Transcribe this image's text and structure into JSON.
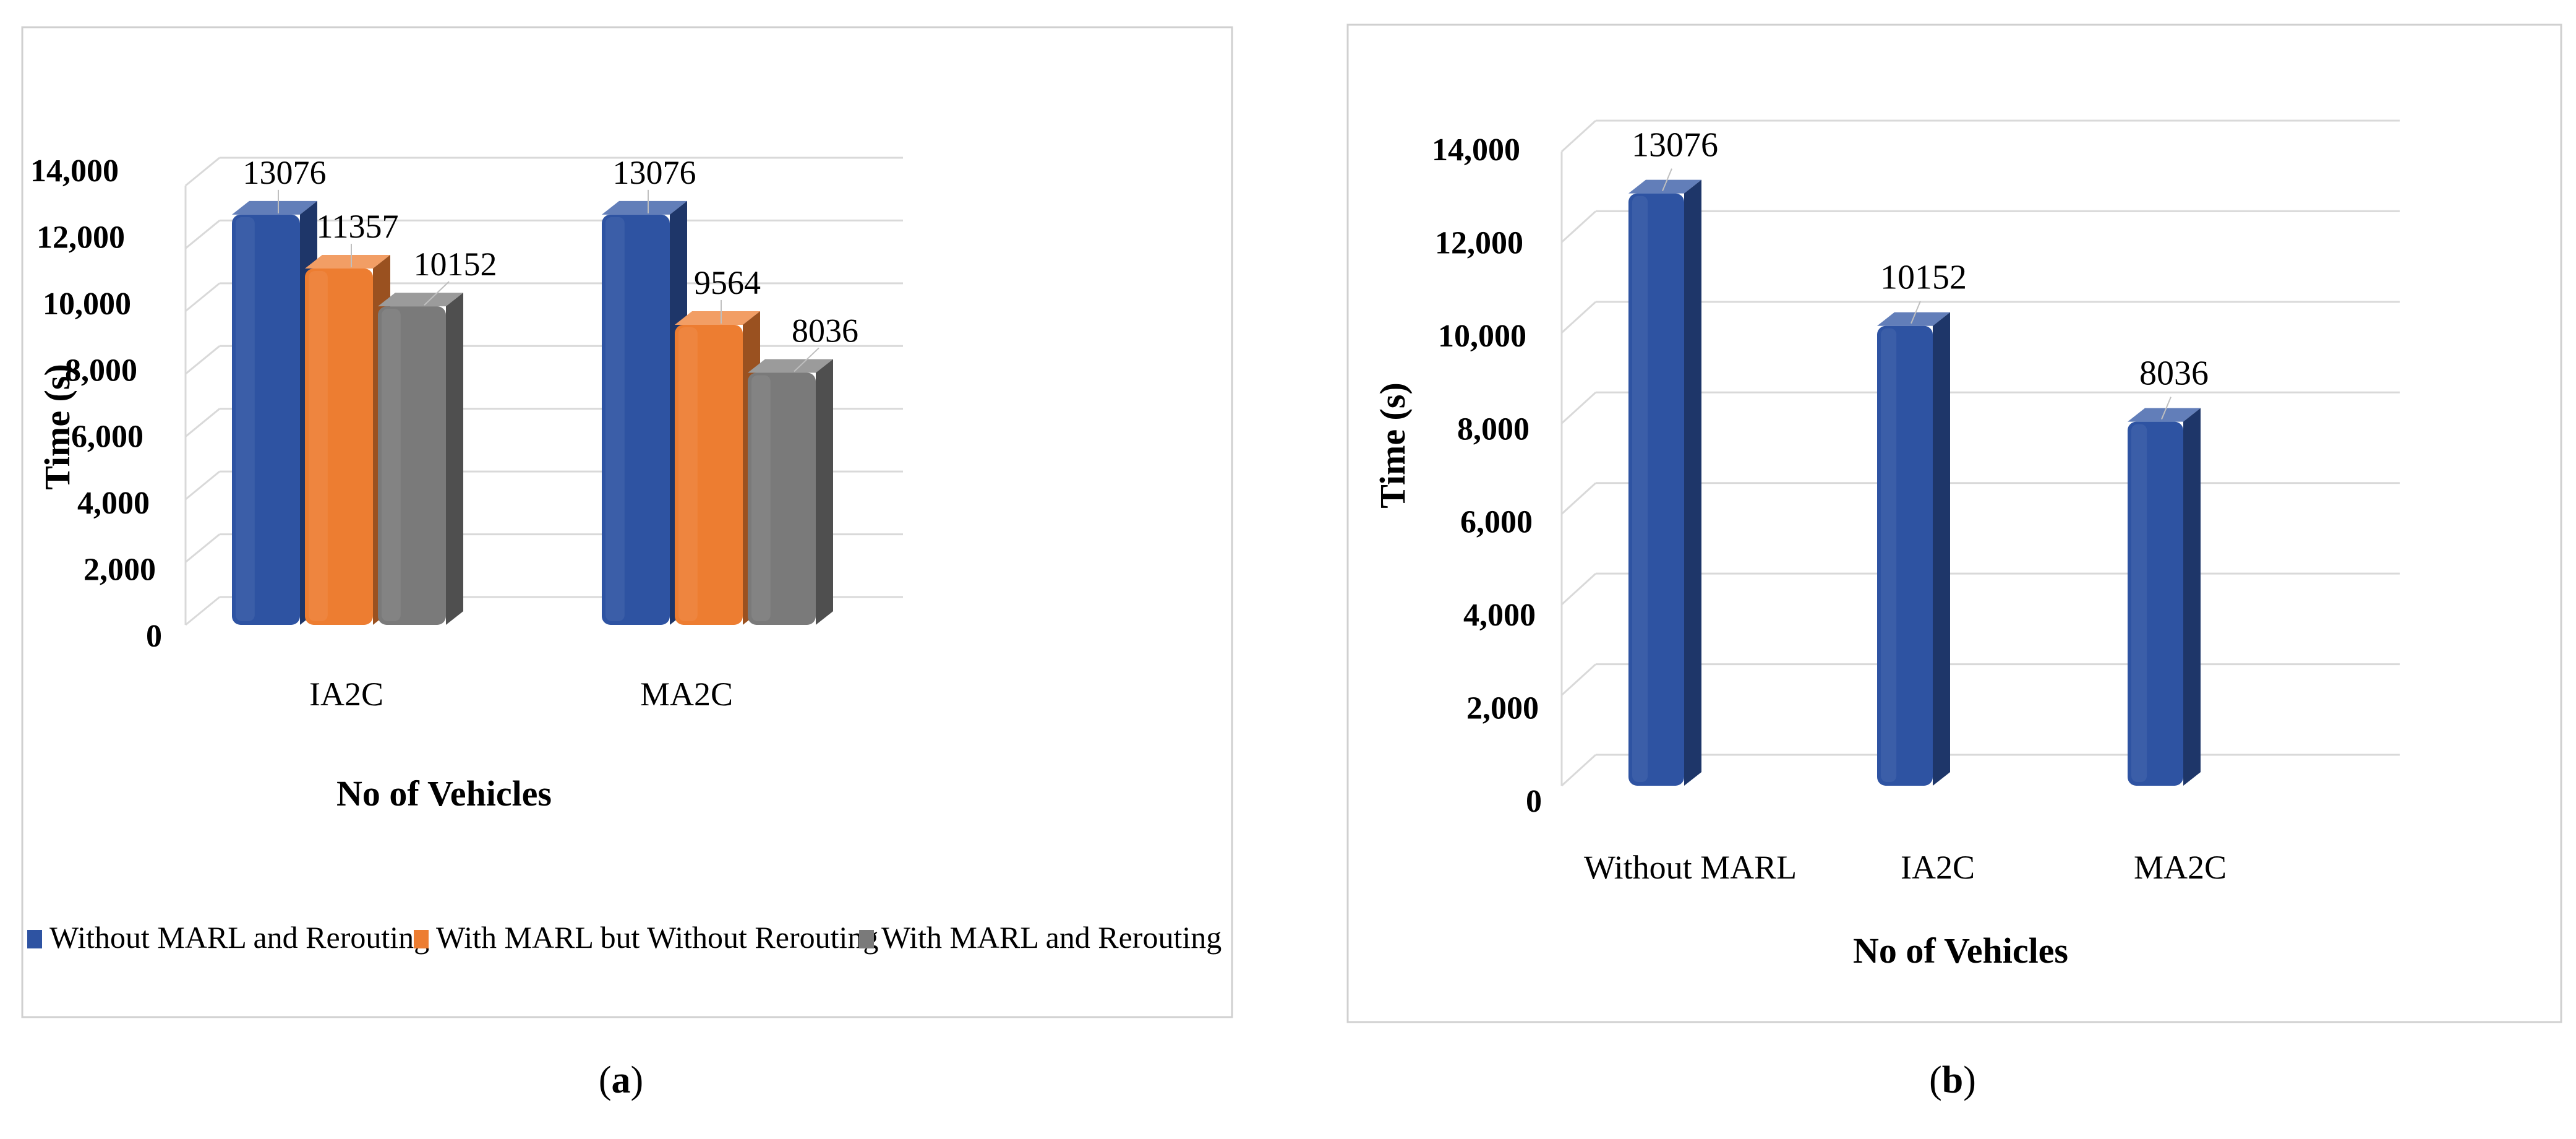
{
  "captions": {
    "a_paren_open": "(",
    "a_letter": "a",
    "a_paren_close": ")",
    "b_paren_open": "(",
    "b_letter": "b",
    "b_paren_close": ")"
  },
  "colors": {
    "blue": "#2E53A2",
    "orange": "#ED7D31",
    "gray": "#7A7A7A",
    "grid": "#D9D9D9",
    "frame": "#D0D0D0"
  },
  "chart_data": [
    {
      "id": "a",
      "type": "bar",
      "title": "",
      "xlabel": "No of Vehicles",
      "ylabel": "Time (s)",
      "ylim": [
        0,
        14000
      ],
      "yticks": [
        "0",
        "2,000",
        "4,000",
        "6,000",
        "8,000",
        "10,000",
        "12,000",
        "14,000"
      ],
      "categories": [
        "IA2C",
        "MA2C"
      ],
      "series": [
        {
          "name": "Without MARL and Rerouting",
          "color": "#2E53A2",
          "values": [
            13076,
            13076
          ],
          "labels": [
            "13076",
            "13076"
          ]
        },
        {
          "name": "With MARL but Without Rerouting",
          "color": "#ED7D31",
          "values": [
            11357,
            9564
          ],
          "labels": [
            "11357",
            "9564"
          ]
        },
        {
          "name": "With MARL and Rerouting",
          "color": "#7A7A7A",
          "values": [
            10152,
            8036
          ],
          "labels": [
            "10152",
            "8036"
          ]
        }
      ],
      "legend": "bottom"
    },
    {
      "id": "b",
      "type": "bar",
      "title": "",
      "xlabel": "No of Vehicles",
      "ylabel": "Time (s)",
      "ylim": [
        0,
        14000
      ],
      "yticks": [
        "0",
        "2,000",
        "4,000",
        "6,000",
        "8,000",
        "10,000",
        "12,000",
        "14,000"
      ],
      "categories": [
        "Without MARL",
        "IA2C",
        "MA2C"
      ],
      "series": [
        {
          "name": "Time",
          "color": "#2E53A2",
          "values": [
            13076,
            10152,
            8036
          ],
          "labels": [
            "13076",
            "10152",
            "8036"
          ]
        }
      ],
      "legend": "none"
    }
  ]
}
